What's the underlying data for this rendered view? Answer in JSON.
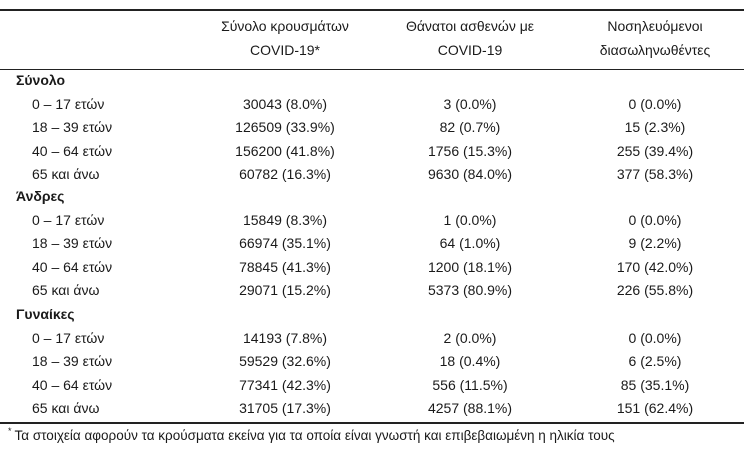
{
  "headers": [
    {
      "line1": "Σύνολο κρουσμάτων",
      "line2": "COVID-19*"
    },
    {
      "line1": "Θάνατοι ασθενών με",
      "line2": "COVID-19"
    },
    {
      "line1": "Νοσηλευόμενοι",
      "line2": "διασωληνωθέντες"
    }
  ],
  "groups": [
    {
      "title": "Σύνολο",
      "rows": [
        {
          "label": "0 – 17 ετών",
          "cases": "30043 (8.0%)",
          "deaths": "3 (0.0%)",
          "intubated": "0 (0.0%)"
        },
        {
          "label": "18 – 39 ετών",
          "cases": "126509 (33.9%)",
          "deaths": "82 (0.7%)",
          "intubated": "15 (2.3%)"
        },
        {
          "label": "40 – 64 ετών",
          "cases": "156200 (41.8%)",
          "deaths": "1756 (15.3%)",
          "intubated": "255 (39.4%)"
        },
        {
          "label": "65 και άνω",
          "cases": "60782 (16.3%)",
          "deaths": "9630 (84.0%)",
          "intubated": "377 (58.3%)"
        }
      ]
    },
    {
      "title": "Άνδρες",
      "rows": [
        {
          "label": "0 – 17 ετών",
          "cases": "15849 (8.3%)",
          "deaths": "1 (0.0%)",
          "intubated": "0 (0.0%)"
        },
        {
          "label": "18 – 39 ετών",
          "cases": "66974 (35.1%)",
          "deaths": "64 (1.0%)",
          "intubated": "9 (2.2%)"
        },
        {
          "label": "40 – 64 ετών",
          "cases": "78845 (41.3%)",
          "deaths": "1200 (18.1%)",
          "intubated": "170 (42.0%)"
        },
        {
          "label": "65 και άνω",
          "cases": "29071 (15.2%)",
          "deaths": "5373 (80.9%)",
          "intubated": "226 (55.8%)"
        }
      ]
    },
    {
      "title": "Γυναίκες",
      "rows": [
        {
          "label": "0 – 17 ετών",
          "cases": "14193 (7.8%)",
          "deaths": "2 (0.0%)",
          "intubated": "0 (0.0%)"
        },
        {
          "label": "18 – 39 ετών",
          "cases": "59529 (32.6%)",
          "deaths": "18 (0.4%)",
          "intubated": "6 (2.5%)"
        },
        {
          "label": "40 – 64 ετών",
          "cases": "77341 (42.3%)",
          "deaths": "556 (11.5%)",
          "intubated": "85 (35.1%)"
        },
        {
          "label": "65 και άνω",
          "cases": "31705 (17.3%)",
          "deaths": "4257 (88.1%)",
          "intubated": "151 (62.4%)"
        }
      ]
    }
  ],
  "footnote": {
    "marker": "*",
    "text": "Τα στοιχεία αφορούν τα κρούσματα εκείνα για τα οποία είναι γνωστή και επιβεβαιωμένη η ηλικία τους"
  }
}
